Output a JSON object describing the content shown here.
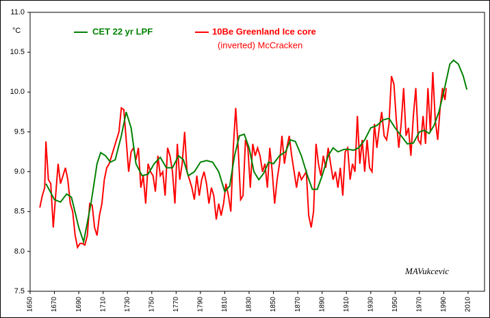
{
  "chart_data": {
    "type": "line",
    "y_label": "°C",
    "annotations": [
      "(inverted)  McCracken",
      "MAVukcevic"
    ],
    "xlim": [
      1650,
      2023.5
    ],
    "xticks": [
      1650,
      1670,
      1690,
      1710,
      1730,
      1750,
      1770,
      1790,
      1810,
      1830,
      1850,
      1870,
      1890,
      1910,
      1930,
      1950,
      1970,
      1990,
      2010
    ],
    "ylim": [
      7.5,
      11.0
    ],
    "yticks": [
      {
        "value": 7.5,
        "label": "7.5"
      },
      {
        "value": 8.0,
        "label": "8.0"
      },
      {
        "value": 8.5,
        "label": "8.5"
      },
      {
        "value": 9.0,
        "label": "9.0"
      },
      {
        "value": 9.5,
        "label": "9.5"
      },
      {
        "value": 10.0,
        "label": "10.0"
      },
      {
        "value": 10.5,
        "label": "10.5"
      },
      {
        "value": 11.0,
        "label": "11.0"
      }
    ],
    "grid": false,
    "series": [
      {
        "name": "CET 22 yr LPF",
        "color": "#008000",
        "x": [
          1663,
          1670,
          1675,
          1680,
          1684,
          1690,
          1694,
          1700,
          1705,
          1708,
          1712,
          1716,
          1720,
          1725,
          1729,
          1733,
          1737,
          1742,
          1747,
          1752,
          1757,
          1762,
          1767,
          1772,
          1776,
          1780,
          1785,
          1790,
          1795,
          1800,
          1805,
          1810,
          1814,
          1818,
          1822,
          1826,
          1830,
          1834,
          1838,
          1842,
          1846,
          1850,
          1855,
          1860,
          1864,
          1868,
          1873,
          1878,
          1882,
          1886,
          1890,
          1895,
          1899,
          1903,
          1908,
          1912,
          1916,
          1920,
          1925,
          1930,
          1935,
          1940,
          1945,
          1950,
          1955,
          1960,
          1965,
          1970,
          1974,
          1978,
          1982,
          1986,
          1990,
          1995,
          1998,
          2002,
          2006,
          2009
        ],
        "values": [
          8.85,
          8.65,
          8.62,
          8.72,
          8.68,
          8.3,
          8.12,
          8.6,
          9.1,
          9.24,
          9.2,
          9.12,
          9.15,
          9.45,
          9.75,
          9.55,
          9.1,
          8.95,
          8.97,
          9.1,
          9.18,
          9.05,
          9.05,
          9.2,
          9.15,
          8.95,
          9.0,
          9.12,
          9.14,
          9.12,
          9.0,
          8.75,
          8.82,
          9.2,
          9.45,
          9.47,
          9.3,
          9.0,
          8.9,
          8.98,
          9.12,
          9.1,
          9.2,
          9.25,
          9.4,
          9.38,
          9.2,
          8.95,
          8.78,
          8.78,
          8.95,
          9.2,
          9.3,
          9.25,
          9.28,
          9.28,
          9.27,
          9.3,
          9.4,
          9.55,
          9.58,
          9.65,
          9.67,
          9.55,
          9.45,
          9.35,
          9.36,
          9.5,
          9.52,
          9.48,
          9.58,
          9.75,
          10.0,
          10.35,
          10.4,
          10.35,
          10.2,
          10.03
        ]
      },
      {
        "name": "10Be Greenland Ice core",
        "color": "#ff0000",
        "x": [
          1658,
          1660,
          1662,
          1663,
          1665,
          1667,
          1669,
          1671,
          1673,
          1675,
          1677,
          1679,
          1681,
          1683,
          1685,
          1687,
          1689,
          1691,
          1693,
          1695,
          1697,
          1699,
          1701,
          1703,
          1705,
          1707,
          1709,
          1711,
          1713,
          1715,
          1717,
          1719,
          1721,
          1723,
          1725,
          1727,
          1729,
          1731,
          1733,
          1735,
          1737,
          1739,
          1741,
          1743,
          1745,
          1747,
          1749,
          1751,
          1753,
          1755,
          1757,
          1759,
          1761,
          1763,
          1765,
          1767,
          1769,
          1771,
          1773,
          1775,
          1777,
          1779,
          1781,
          1783,
          1785,
          1787,
          1789,
          1791,
          1793,
          1795,
          1797,
          1799,
          1801,
          1803,
          1805,
          1807,
          1809,
          1811,
          1813,
          1815,
          1817,
          1819,
          1821,
          1823,
          1825,
          1827,
          1829,
          1831,
          1833,
          1835,
          1837,
          1839,
          1841,
          1843,
          1845,
          1847,
          1849,
          1851,
          1853,
          1855,
          1857,
          1859,
          1861,
          1863,
          1865,
          1867,
          1869,
          1871,
          1873,
          1875,
          1877,
          1879,
          1881,
          1883,
          1885,
          1887,
          1889,
          1891,
          1893,
          1895,
          1897,
          1899,
          1901,
          1903,
          1905,
          1907,
          1909,
          1911,
          1913,
          1915,
          1917,
          1919,
          1921,
          1923,
          1925,
          1927,
          1929,
          1931,
          1933,
          1935,
          1937,
          1939,
          1941,
          1943,
          1945,
          1947,
          1949,
          1951,
          1953,
          1955,
          1957,
          1959,
          1961,
          1963,
          1965,
          1967,
          1969,
          1971,
          1973,
          1975,
          1977,
          1979,
          1981,
          1983,
          1985,
          1987,
          1989,
          1991,
          1992
        ],
        "values": [
          8.55,
          8.7,
          8.8,
          9.38,
          8.9,
          8.85,
          8.3,
          8.7,
          9.1,
          8.85,
          8.95,
          9.05,
          8.9,
          8.6,
          8.5,
          8.2,
          8.05,
          8.1,
          8.1,
          8.08,
          8.2,
          8.6,
          8.58,
          8.3,
          8.2,
          8.45,
          8.6,
          8.9,
          9.05,
          9.1,
          9.2,
          9.3,
          9.4,
          9.5,
          9.8,
          9.78,
          9.4,
          9.0,
          9.25,
          9.3,
          9.15,
          9.3,
          8.8,
          8.95,
          8.6,
          9.1,
          9.0,
          8.95,
          8.75,
          9.2,
          8.95,
          9.0,
          8.7,
          9.3,
          9.2,
          9.0,
          8.6,
          9.35,
          8.9,
          9.1,
          9.5,
          9.0,
          8.9,
          8.8,
          8.65,
          8.95,
          8.7,
          8.9,
          9.0,
          8.85,
          8.6,
          8.8,
          8.7,
          8.4,
          8.6,
          8.45,
          8.6,
          8.85,
          8.7,
          8.5,
          9.3,
          9.8,
          9.3,
          8.65,
          8.7,
          9.4,
          9.3,
          8.8,
          9.35,
          9.2,
          9.3,
          9.2,
          9.0,
          9.1,
          8.8,
          9.3,
          9.0,
          8.6,
          8.9,
          9.1,
          9.45,
          9.1,
          9.3,
          9.45,
          9.2,
          9.0,
          8.8,
          9.0,
          8.9,
          8.95,
          9.0,
          8.45,
          8.3,
          8.5,
          9.35,
          9.1,
          8.95,
          9.2,
          9.05,
          9.3,
          9.1,
          8.9,
          9.0,
          8.8,
          9.05,
          8.7,
          9.25,
          9.3,
          8.9,
          9.1,
          9.0,
          9.7,
          9.1,
          9.4,
          9.0,
          9.4,
          9.05,
          9.0,
          9.6,
          9.3,
          9.55,
          9.75,
          9.45,
          9.4,
          9.6,
          10.2,
          10.1,
          9.65,
          9.3,
          9.6,
          10.05,
          9.45,
          9.55,
          9.2,
          9.7,
          10.05,
          9.4,
          9.35,
          9.7,
          9.35,
          10.05,
          9.5,
          10.25,
          9.65,
          9.4,
          9.8,
          10.05,
          9.9,
          10.05
        ]
      }
    ]
  }
}
